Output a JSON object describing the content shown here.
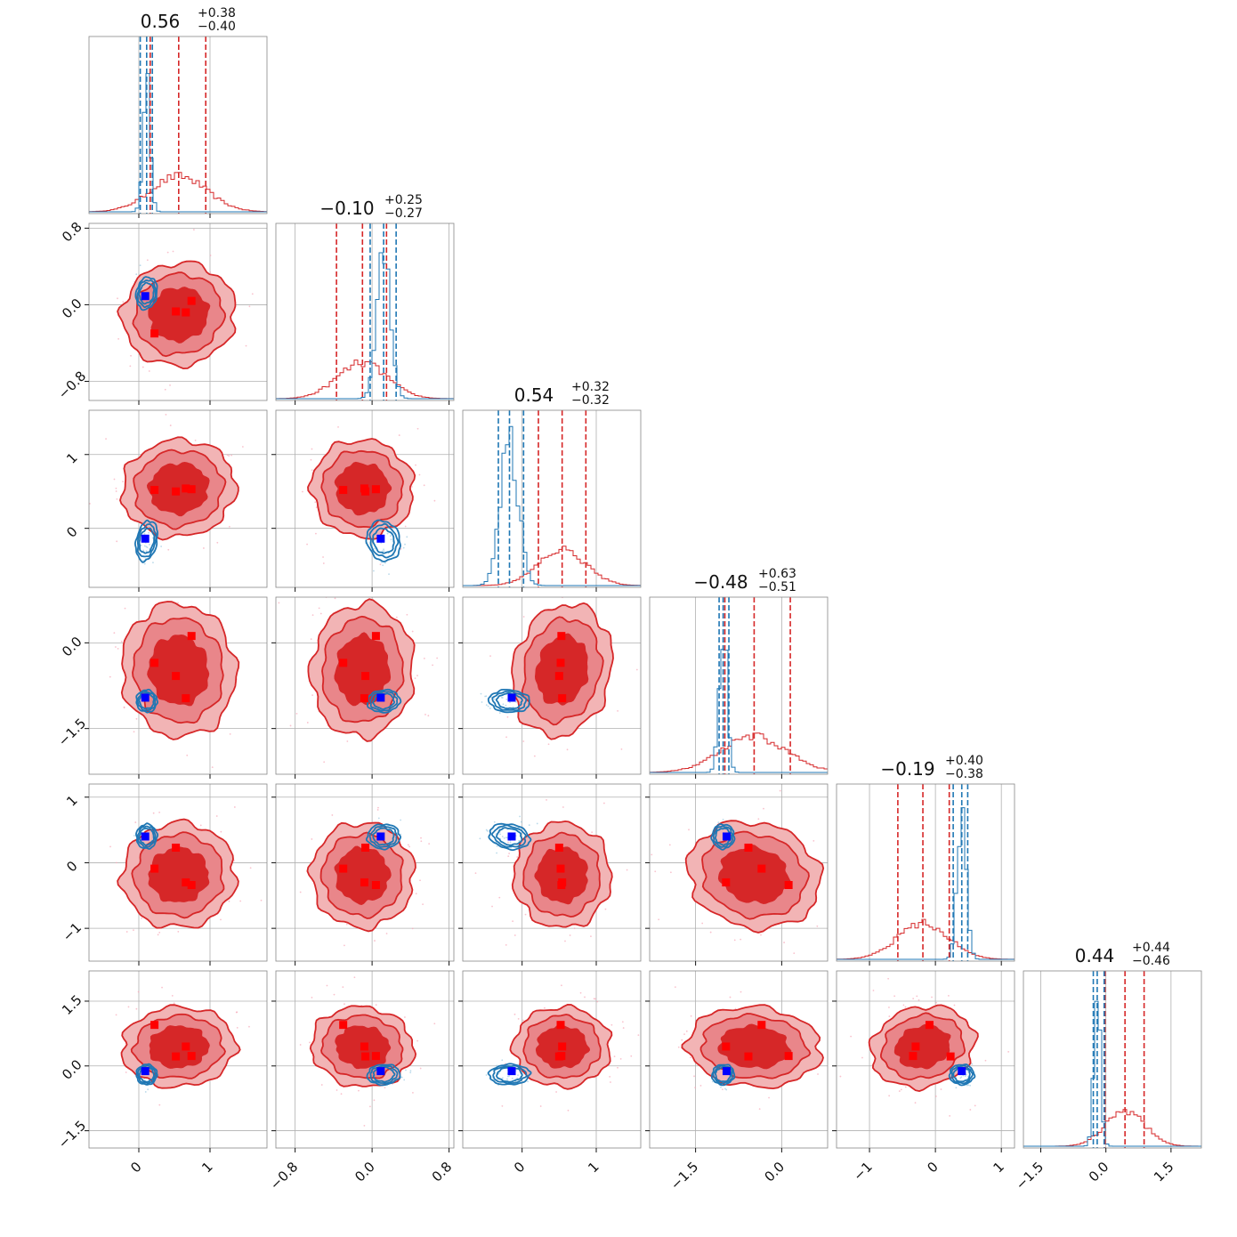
{
  "colors": {
    "red": "#d62728",
    "red_light": "#f2b4b5",
    "red_mid": "#e9868a",
    "blue": "#1f77b4",
    "marker_red": "#ff0000",
    "marker_blue": "#0000ff",
    "grid": "#b0b0b0"
  },
  "chart_data": {
    "type": "corner",
    "grid": true,
    "n_params": 6,
    "titles": [
      {
        "value": "0.56",
        "plus": "+0.38",
        "minus": "−0.40"
      },
      {
        "value": "−0.10",
        "plus": "+0.25",
        "minus": "−0.27"
      },
      {
        "value": "0.54",
        "plus": "+0.32",
        "minus": "−0.32"
      },
      {
        "value": "−0.48",
        "plus": "+0.63",
        "minus": "−0.51"
      },
      {
        "value": "−0.19",
        "plus": "+0.40",
        "minus": "−0.38"
      },
      {
        "value": "0.44",
        "plus": "+0.44",
        "minus": "−0.46"
      }
    ],
    "ranges": [
      [
        -0.7,
        1.8
      ],
      [
        -1.0,
        0.85
      ],
      [
        -0.8,
        1.6
      ],
      [
        -2.3,
        0.8
      ],
      [
        -1.5,
        1.2
      ],
      [
        -1.9,
        2.2
      ]
    ],
    "ticks": [
      {
        "values": [
          0,
          1
        ],
        "labels": [
          "0",
          "1"
        ]
      },
      {
        "values": [
          -0.8,
          0.0,
          0.8
        ],
        "labels": [
          "−0.8",
          "0.0",
          "0.8"
        ]
      },
      {
        "values": [
          0,
          1
        ],
        "labels": [
          "0",
          "1"
        ]
      },
      {
        "values": [
          -1.5,
          0.0
        ],
        "labels": [
          "−1.5",
          "0.0"
        ]
      },
      {
        "values": [
          -1,
          0,
          1
        ],
        "labels": [
          "−1",
          "0",
          "1"
        ]
      },
      {
        "values": [
          -1.5,
          0.0,
          1.5
        ],
        "labels": [
          "−1.5",
          "0.0",
          "1.5"
        ]
      }
    ],
    "red_distribution": {
      "center": [
        0.56,
        -0.1,
        0.54,
        -0.48,
        -0.19,
        0.44
      ],
      "sigma": [
        0.39,
        0.26,
        0.32,
        0.57,
        0.39,
        0.45
      ],
      "quantiles": [
        [
          0.16,
          0.56,
          0.94
        ],
        [
          -0.37,
          -0.1,
          0.15
        ],
        [
          0.22,
          0.54,
          0.86
        ],
        [
          -0.99,
          -0.48,
          0.15
        ],
        [
          -0.57,
          -0.19,
          0.21
        ],
        [
          -0.02,
          0.44,
          0.88
        ]
      ]
    },
    "blue_distribution": {
      "center": [
        0.11,
        0.12,
        -0.17,
        -1.02,
        0.4,
        -0.2
      ],
      "sigma": [
        0.05,
        0.07,
        0.12,
        0.07,
        0.07,
        0.08
      ],
      "quantiles": [
        [
          0.02,
          0.11,
          0.19
        ],
        [
          -0.02,
          0.12,
          0.25
        ],
        [
          -0.32,
          -0.17,
          0.02
        ],
        [
          -1.09,
          -1.02,
          -0.92
        ],
        [
          0.27,
          0.4,
          0.49
        ],
        [
          -0.29,
          -0.2,
          -0.04
        ]
      ]
    },
    "truth_blue": [
      0.09,
      0.09,
      -0.14,
      -0.96,
      0.4,
      -0.12
    ],
    "truth_red_points": [
      [
        0.22,
        -0.3,
        0.52,
        -0.35,
        -0.09,
        0.95
      ],
      [
        0.52,
        -0.07,
        0.5,
        -0.58,
        0.23,
        0.22
      ],
      [
        0.66,
        -0.08,
        0.54,
        -0.97,
        -0.3,
        0.45
      ],
      [
        0.74,
        0.04,
        0.53,
        0.12,
        -0.34,
        0.23
      ]
    ]
  }
}
